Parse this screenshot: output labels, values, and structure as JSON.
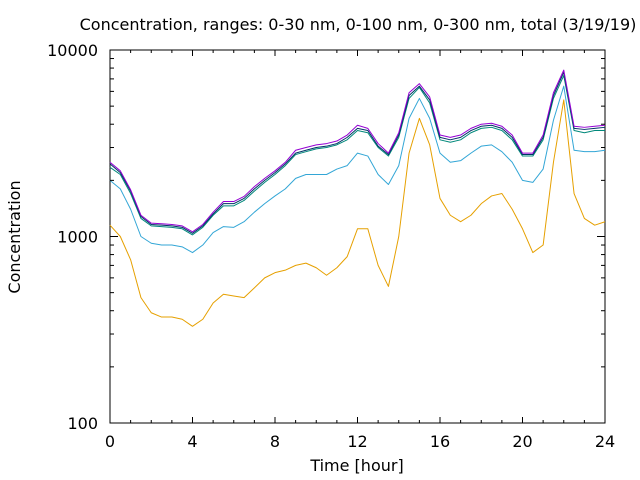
{
  "chart_data": {
    "type": "line",
    "title": "Concentration, ranges: 0-30 nm, 0-100 nm, 0-300 nm, total (3/19/19)",
    "xlabel": "Time [hour]",
    "ylabel": "Concentration",
    "xlim": [
      0,
      24
    ],
    "ylim": [
      100,
      10000
    ],
    "yscale": "log",
    "grid": false,
    "x_ticks": [
      0,
      4,
      8,
      12,
      16,
      20,
      24
    ],
    "x_tick_labels": [
      "0",
      "4",
      "8",
      "12",
      "16",
      "20",
      "24"
    ],
    "y_ticks": [
      100,
      1000,
      10000
    ],
    "y_tick_labels": [
      "100",
      "1000",
      "10000"
    ],
    "x": [
      0,
      0.5,
      1,
      1.5,
      2,
      2.5,
      3,
      3.5,
      4,
      4.5,
      5,
      5.5,
      6,
      6.5,
      7,
      7.5,
      8,
      8.5,
      9,
      9.5,
      10,
      10.5,
      11,
      11.5,
      12,
      12.5,
      13,
      13.5,
      14,
      14.5,
      15,
      15.5,
      16,
      16.5,
      17,
      17.5,
      18,
      18.5,
      19,
      19.5,
      20,
      20.5,
      21,
      21.5,
      22,
      22.5,
      23,
      23.5,
      24
    ],
    "series": [
      {
        "color": "#e6a000",
        "values": [
          1150,
          1000,
          750,
          470,
          390,
          370,
          370,
          360,
          330,
          360,
          440,
          490,
          480,
          470,
          530,
          600,
          640,
          660,
          700,
          720,
          680,
          620,
          680,
          780,
          1100,
          1100,
          700,
          540,
          1000,
          2800,
          4300,
          3100,
          1600,
          1300,
          1200,
          1300,
          1500,
          1650,
          1700,
          1400,
          1100,
          820,
          900,
          2500,
          5400,
          1700,
          1250,
          1150,
          1200
        ]
      },
      {
        "color": "#33a6d6",
        "values": [
          2000,
          1800,
          1400,
          1000,
          920,
          900,
          900,
          880,
          820,
          900,
          1050,
          1130,
          1120,
          1200,
          1350,
          1500,
          1650,
          1800,
          2050,
          2150,
          2150,
          2150,
          2300,
          2400,
          2800,
          2700,
          2150,
          1900,
          2400,
          4300,
          5500,
          4300,
          2800,
          2500,
          2550,
          2800,
          3050,
          3100,
          2850,
          2500,
          2000,
          1950,
          2300,
          4200,
          6400,
          2900,
          2850,
          2850,
          2900
        ]
      },
      {
        "color": "#00887a",
        "values": [
          2350,
          2150,
          1700,
          1250,
          1140,
          1130,
          1120,
          1100,
          1020,
          1120,
          1300,
          1460,
          1460,
          1560,
          1750,
          1950,
          2150,
          2400,
          2750,
          2850,
          2950,
          3000,
          3100,
          3300,
          3700,
          3600,
          3000,
          2700,
          3400,
          5500,
          6300,
          5200,
          3300,
          3200,
          3300,
          3600,
          3800,
          3850,
          3700,
          3300,
          2700,
          2700,
          3300,
          5500,
          7300,
          3700,
          3600,
          3700,
          3700
        ]
      },
      {
        "color": "#003366",
        "values": [
          2450,
          2200,
          1750,
          1280,
          1160,
          1150,
          1140,
          1120,
          1040,
          1140,
          1320,
          1500,
          1500,
          1600,
          1800,
          2000,
          2200,
          2450,
          2800,
          2900,
          3000,
          3050,
          3150,
          3400,
          3800,
          3700,
          3050,
          2750,
          3500,
          5700,
          6400,
          5400,
          3400,
          3300,
          3400,
          3700,
          3900,
          3950,
          3800,
          3400,
          2750,
          2750,
          3400,
          5700,
          7600,
          3800,
          3750,
          3800,
          3850
        ]
      },
      {
        "color": "#9400d3",
        "values": [
          2500,
          2250,
          1780,
          1300,
          1180,
          1170,
          1160,
          1140,
          1060,
          1160,
          1350,
          1540,
          1540,
          1640,
          1850,
          2050,
          2250,
          2500,
          2900,
          3000,
          3100,
          3150,
          3250,
          3500,
          3950,
          3800,
          3150,
          2800,
          3600,
          5900,
          6600,
          5600,
          3500,
          3400,
          3500,
          3800,
          4000,
          4050,
          3900,
          3500,
          2800,
          2800,
          3500,
          5900,
          7800,
          3900,
          3850,
          3900,
          3950
        ]
      }
    ]
  }
}
